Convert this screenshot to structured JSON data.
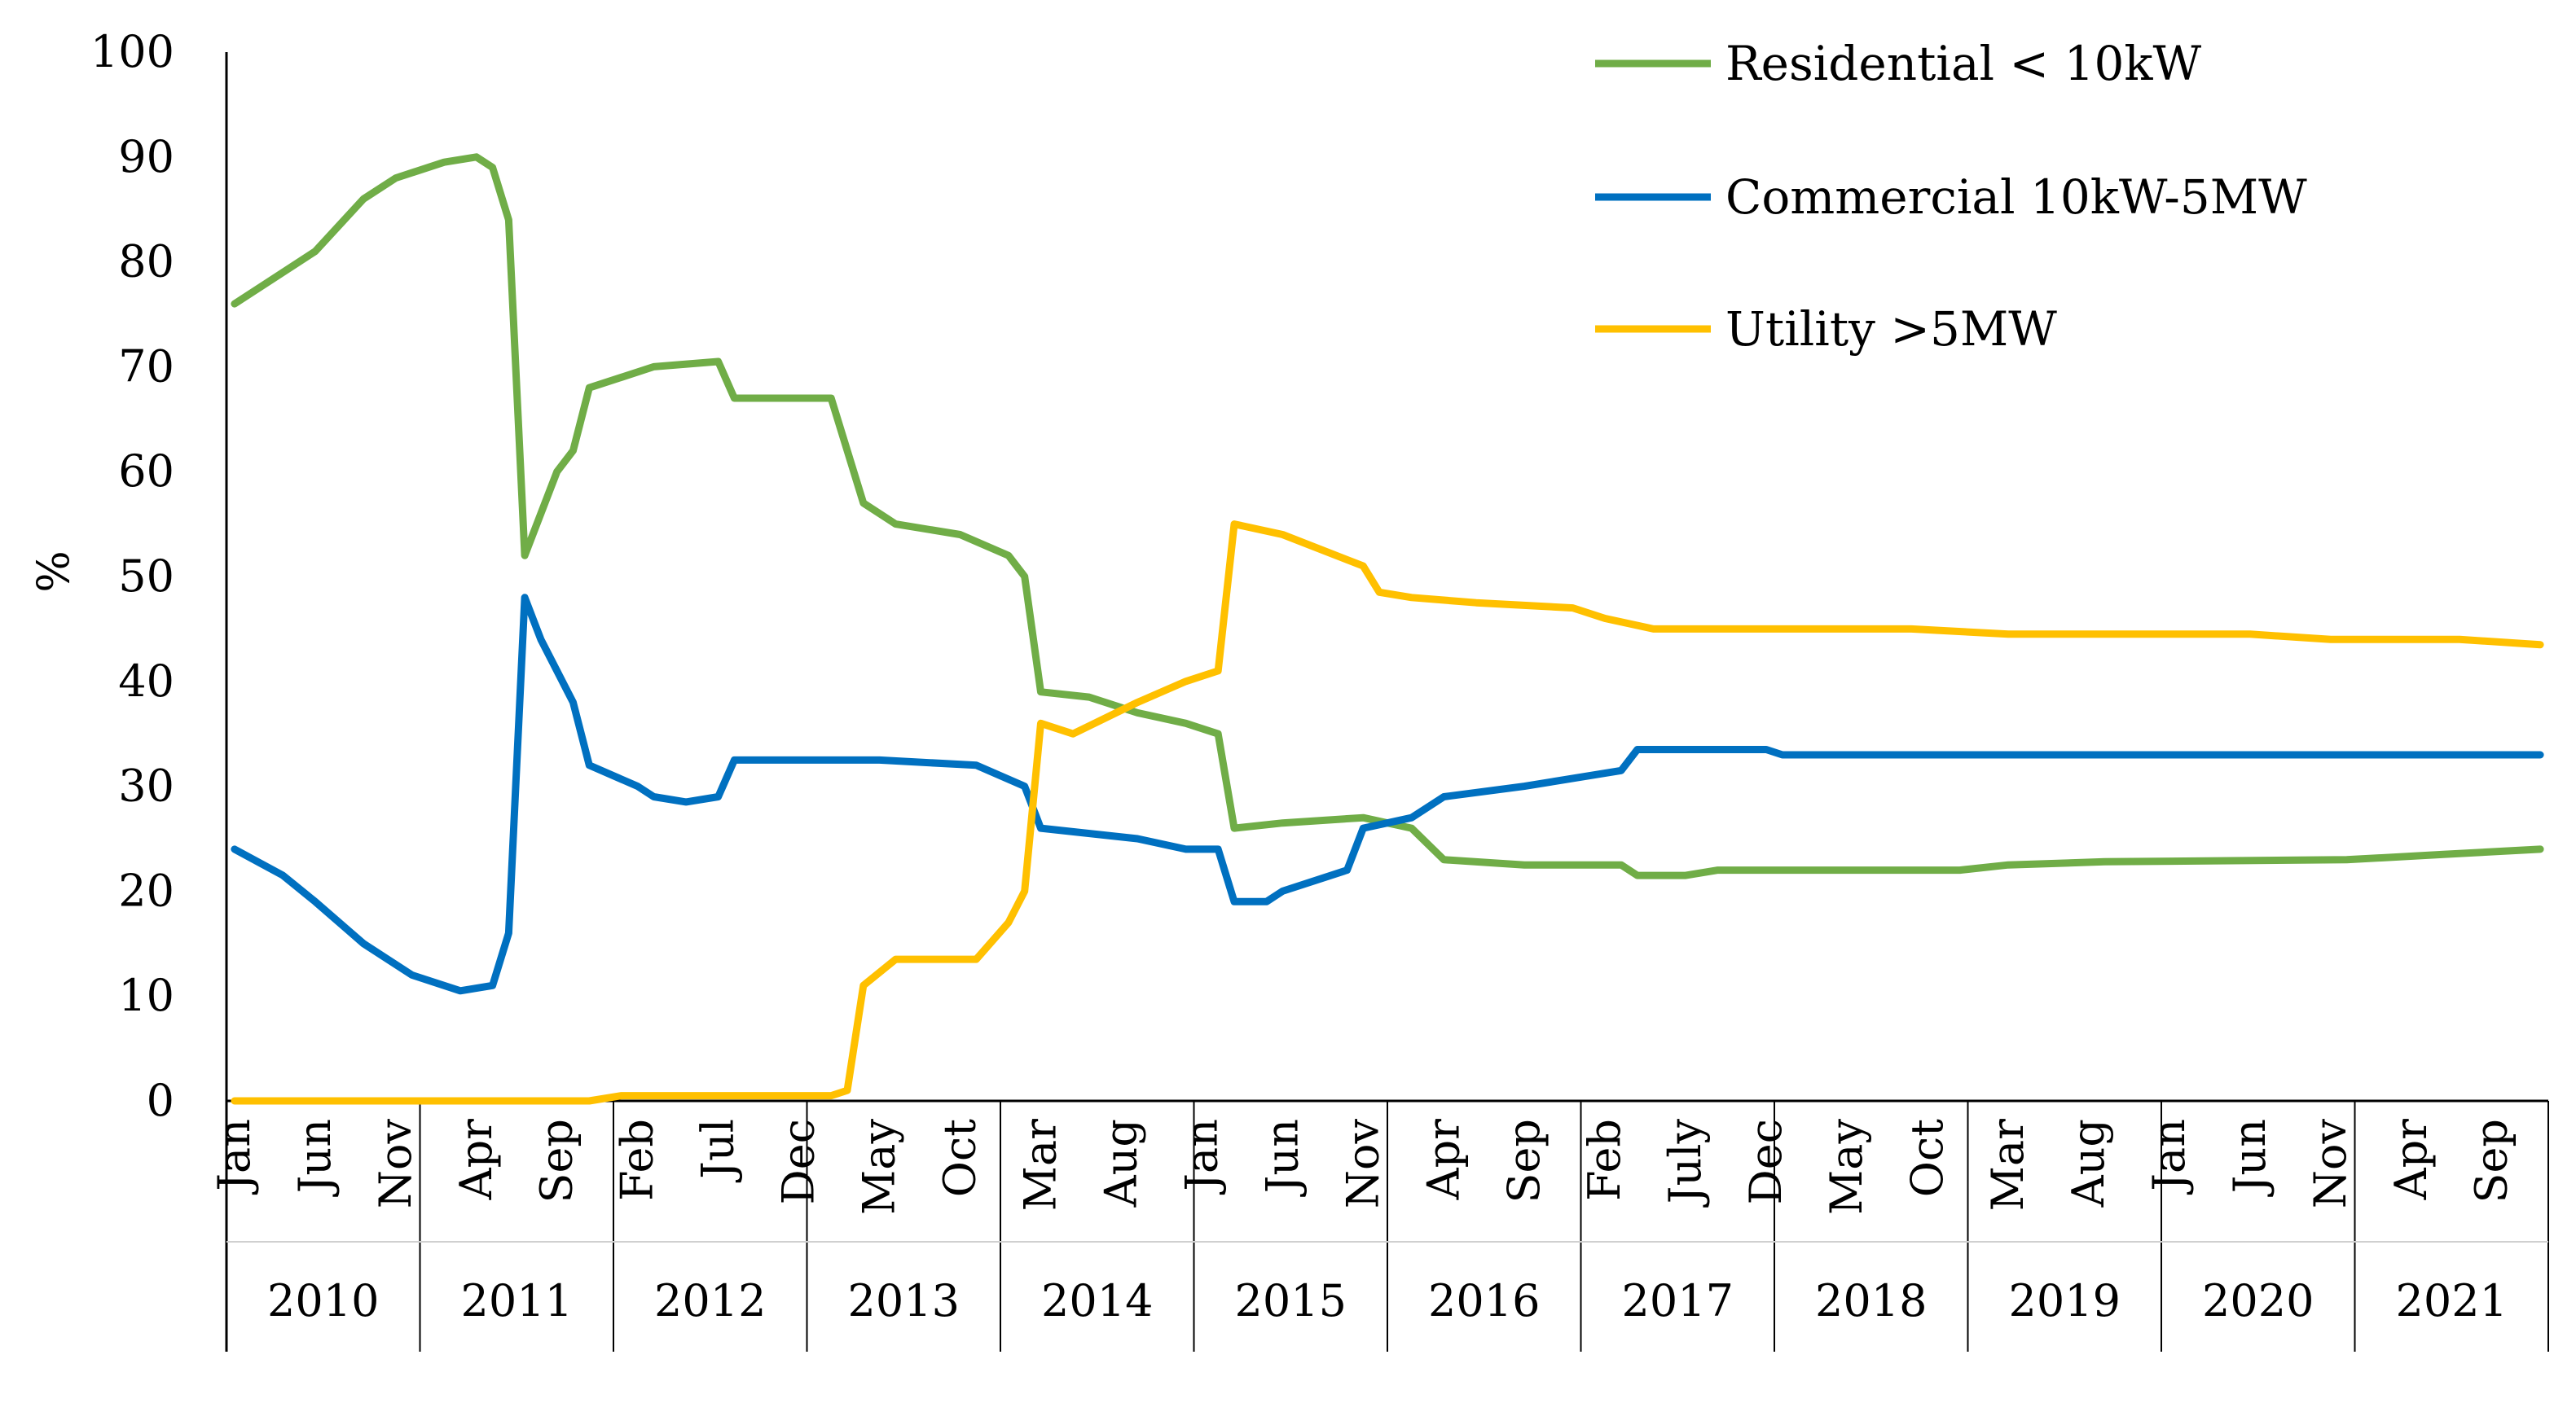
{
  "chart_data": {
    "type": "line",
    "title": "",
    "xlabel": "",
    "ylabel": "%",
    "ylim": [
      0,
      100
    ],
    "yticks": [
      0,
      10,
      20,
      30,
      40,
      50,
      60,
      70,
      80,
      90,
      100
    ],
    "grid": false,
    "legend_position": "top-right",
    "years": [
      "2010",
      "2011",
      "2012",
      "2013",
      "2014",
      "2015",
      "2016",
      "2017",
      "2018",
      "2019",
      "2020",
      "2021"
    ],
    "month_ticks": [
      {
        "label": "Jan",
        "year": 2010,
        "month": 1
      },
      {
        "label": "Jun",
        "year": 2010,
        "month": 6
      },
      {
        "label": "Nov",
        "year": 2010,
        "month": 11
      },
      {
        "label": "Apr",
        "year": 2011,
        "month": 4
      },
      {
        "label": "Sep",
        "year": 2011,
        "month": 9
      },
      {
        "label": "Feb",
        "year": 2012,
        "month": 2
      },
      {
        "label": "Jul",
        "year": 2012,
        "month": 7
      },
      {
        "label": "Dec",
        "year": 2012,
        "month": 12
      },
      {
        "label": "May",
        "year": 2013,
        "month": 5
      },
      {
        "label": "Oct",
        "year": 2013,
        "month": 10
      },
      {
        "label": "Mar",
        "year": 2014,
        "month": 3
      },
      {
        "label": "Aug",
        "year": 2014,
        "month": 8
      },
      {
        "label": "Jan",
        "year": 2015,
        "month": 1
      },
      {
        "label": "Jun",
        "year": 2015,
        "month": 6
      },
      {
        "label": "Nov",
        "year": 2015,
        "month": 11
      },
      {
        "label": "Apr",
        "year": 2016,
        "month": 4
      },
      {
        "label": "Sep",
        "year": 2016,
        "month": 9
      },
      {
        "label": "Feb",
        "year": 2017,
        "month": 2
      },
      {
        "label": "July",
        "year": 2017,
        "month": 7
      },
      {
        "label": "Dec",
        "year": 2017,
        "month": 12
      },
      {
        "label": "May",
        "year": 2018,
        "month": 5
      },
      {
        "label": "Oct",
        "year": 2018,
        "month": 10
      },
      {
        "label": "Mar",
        "year": 2019,
        "month": 3
      },
      {
        "label": "Aug",
        "year": 2019,
        "month": 8
      },
      {
        "label": "Jan",
        "year": 2020,
        "month": 1
      },
      {
        "label": "Jun",
        "year": 2020,
        "month": 6
      },
      {
        "label": "Nov",
        "year": 2020,
        "month": 11
      },
      {
        "label": "Apr",
        "year": 2021,
        "month": 4
      },
      {
        "label": "Sep",
        "year": 2021,
        "month": 9
      }
    ],
    "series": [
      {
        "name": "Residential < 10kW",
        "color": "#70AD47",
        "points": [
          {
            "year": 2010,
            "month": 1,
            "value": 76
          },
          {
            "year": 2010,
            "month": 3,
            "value": 78
          },
          {
            "year": 2010,
            "month": 6,
            "value": 81
          },
          {
            "year": 2010,
            "month": 9,
            "value": 86
          },
          {
            "year": 2010,
            "month": 11,
            "value": 88
          },
          {
            "year": 2011,
            "month": 2,
            "value": 89.5
          },
          {
            "year": 2011,
            "month": 4,
            "value": 90
          },
          {
            "year": 2011,
            "month": 5,
            "value": 89
          },
          {
            "year": 2011,
            "month": 6,
            "value": 84
          },
          {
            "year": 2011,
            "month": 7,
            "value": 52
          },
          {
            "year": 2011,
            "month": 9,
            "value": 60
          },
          {
            "year": 2011,
            "month": 10,
            "value": 62
          },
          {
            "year": 2011,
            "month": 11,
            "value": 68
          },
          {
            "year": 2012,
            "month": 1,
            "value": 69
          },
          {
            "year": 2012,
            "month": 3,
            "value": 70
          },
          {
            "year": 2012,
            "month": 7,
            "value": 70.5
          },
          {
            "year": 2012,
            "month": 8,
            "value": 67
          },
          {
            "year": 2012,
            "month": 12,
            "value": 67
          },
          {
            "year": 2013,
            "month": 2,
            "value": 67
          },
          {
            "year": 2013,
            "month": 4,
            "value": 57
          },
          {
            "year": 2013,
            "month": 6,
            "value": 55
          },
          {
            "year": 2013,
            "month": 10,
            "value": 54
          },
          {
            "year": 2014,
            "month": 1,
            "value": 52
          },
          {
            "year": 2014,
            "month": 2,
            "value": 50
          },
          {
            "year": 2014,
            "month": 3,
            "value": 39
          },
          {
            "year": 2014,
            "month": 6,
            "value": 38.5
          },
          {
            "year": 2014,
            "month": 9,
            "value": 37
          },
          {
            "year": 2014,
            "month": 12,
            "value": 36
          },
          {
            "year": 2015,
            "month": 2,
            "value": 35
          },
          {
            "year": 2015,
            "month": 3,
            "value": 26
          },
          {
            "year": 2015,
            "month": 6,
            "value": 26.5
          },
          {
            "year": 2015,
            "month": 11,
            "value": 27
          },
          {
            "year": 2016,
            "month": 2,
            "value": 26
          },
          {
            "year": 2016,
            "month": 4,
            "value": 23
          },
          {
            "year": 2016,
            "month": 9,
            "value": 22.5
          },
          {
            "year": 2017,
            "month": 3,
            "value": 22.5
          },
          {
            "year": 2017,
            "month": 4,
            "value": 21.5
          },
          {
            "year": 2017,
            "month": 7,
            "value": 21.5
          },
          {
            "year": 2017,
            "month": 9,
            "value": 22
          },
          {
            "year": 2018,
            "month": 12,
            "value": 22
          },
          {
            "year": 2019,
            "month": 3,
            "value": 22.5
          },
          {
            "year": 2019,
            "month": 9,
            "value": 22.8
          },
          {
            "year": 2020,
            "month": 12,
            "value": 23
          },
          {
            "year": 2021,
            "month": 6,
            "value": 23.5
          },
          {
            "year": 2021,
            "month": 12,
            "value": 24
          }
        ]
      },
      {
        "name": "Commercial 10kW-5MW",
        "color": "#0070C0",
        "points": [
          {
            "year": 2010,
            "month": 1,
            "value": 24
          },
          {
            "year": 2010,
            "month": 4,
            "value": 21.5
          },
          {
            "year": 2010,
            "month": 6,
            "value": 19
          },
          {
            "year": 2010,
            "month": 9,
            "value": 15
          },
          {
            "year": 2010,
            "month": 12,
            "value": 12
          },
          {
            "year": 2011,
            "month": 3,
            "value": 10.5
          },
          {
            "year": 2011,
            "month": 5,
            "value": 11
          },
          {
            "year": 2011,
            "month": 6,
            "value": 16
          },
          {
            "year": 2011,
            "month": 7,
            "value": 48
          },
          {
            "year": 2011,
            "month": 8,
            "value": 44
          },
          {
            "year": 2011,
            "month": 10,
            "value": 38
          },
          {
            "year": 2011,
            "month": 11,
            "value": 32
          },
          {
            "year": 2012,
            "month": 2,
            "value": 30
          },
          {
            "year": 2012,
            "month": 3,
            "value": 29
          },
          {
            "year": 2012,
            "month": 5,
            "value": 28.5
          },
          {
            "year": 2012,
            "month": 7,
            "value": 29
          },
          {
            "year": 2012,
            "month": 8,
            "value": 32.5
          },
          {
            "year": 2012,
            "month": 12,
            "value": 32.5
          },
          {
            "year": 2013,
            "month": 5,
            "value": 32.5
          },
          {
            "year": 2013,
            "month": 11,
            "value": 32
          },
          {
            "year": 2014,
            "month": 2,
            "value": 30
          },
          {
            "year": 2014,
            "month": 3,
            "value": 26
          },
          {
            "year": 2014,
            "month": 9,
            "value": 25
          },
          {
            "year": 2014,
            "month": 12,
            "value": 24
          },
          {
            "year": 2015,
            "month": 2,
            "value": 24
          },
          {
            "year": 2015,
            "month": 3,
            "value": 19
          },
          {
            "year": 2015,
            "month": 5,
            "value": 19
          },
          {
            "year": 2015,
            "month": 6,
            "value": 20
          },
          {
            "year": 2015,
            "month": 10,
            "value": 22
          },
          {
            "year": 2015,
            "month": 11,
            "value": 26
          },
          {
            "year": 2016,
            "month": 2,
            "value": 27
          },
          {
            "year": 2016,
            "month": 4,
            "value": 29
          },
          {
            "year": 2016,
            "month": 9,
            "value": 30
          },
          {
            "year": 2017,
            "month": 3,
            "value": 31.5
          },
          {
            "year": 2017,
            "month": 4,
            "value": 33.5
          },
          {
            "year": 2017,
            "month": 12,
            "value": 33.5
          },
          {
            "year": 2018,
            "month": 1,
            "value": 33
          },
          {
            "year": 2021,
            "month": 12,
            "value": 33
          }
        ]
      },
      {
        "name": "Utility >5MW",
        "color": "#FFC000",
        "points": [
          {
            "year": 2010,
            "month": 1,
            "value": 0
          },
          {
            "year": 2011,
            "month": 11,
            "value": 0
          },
          {
            "year": 2012,
            "month": 1,
            "value": 0.5
          },
          {
            "year": 2013,
            "month": 2,
            "value": 0.5
          },
          {
            "year": 2013,
            "month": 3,
            "value": 1
          },
          {
            "year": 2013,
            "month": 4,
            "value": 11
          },
          {
            "year": 2013,
            "month": 6,
            "value": 13.5
          },
          {
            "year": 2013,
            "month": 11,
            "value": 13.5
          },
          {
            "year": 2014,
            "month": 1,
            "value": 17
          },
          {
            "year": 2014,
            "month": 2,
            "value": 20
          },
          {
            "year": 2014,
            "month": 3,
            "value": 36
          },
          {
            "year": 2014,
            "month": 5,
            "value": 35
          },
          {
            "year": 2014,
            "month": 9,
            "value": 38
          },
          {
            "year": 2014,
            "month": 12,
            "value": 40
          },
          {
            "year": 2015,
            "month": 2,
            "value": 41
          },
          {
            "year": 2015,
            "month": 3,
            "value": 55
          },
          {
            "year": 2015,
            "month": 6,
            "value": 54
          },
          {
            "year": 2015,
            "month": 11,
            "value": 51
          },
          {
            "year": 2015,
            "month": 12,
            "value": 48.5
          },
          {
            "year": 2016,
            "month": 2,
            "value": 48
          },
          {
            "year": 2016,
            "month": 6,
            "value": 47.5
          },
          {
            "year": 2016,
            "month": 12,
            "value": 47
          },
          {
            "year": 2017,
            "month": 2,
            "value": 46
          },
          {
            "year": 2017,
            "month": 5,
            "value": 45
          },
          {
            "year": 2018,
            "month": 3,
            "value": 45
          },
          {
            "year": 2018,
            "month": 9,
            "value": 45
          },
          {
            "year": 2019,
            "month": 3,
            "value": 44.5
          },
          {
            "year": 2019,
            "month": 12,
            "value": 44.5
          },
          {
            "year": 2020,
            "month": 6,
            "value": 44.5
          },
          {
            "year": 2020,
            "month": 11,
            "value": 44
          },
          {
            "year": 2021,
            "month": 7,
            "value": 44
          },
          {
            "year": 2021,
            "month": 12,
            "value": 43.5
          }
        ]
      }
    ]
  }
}
